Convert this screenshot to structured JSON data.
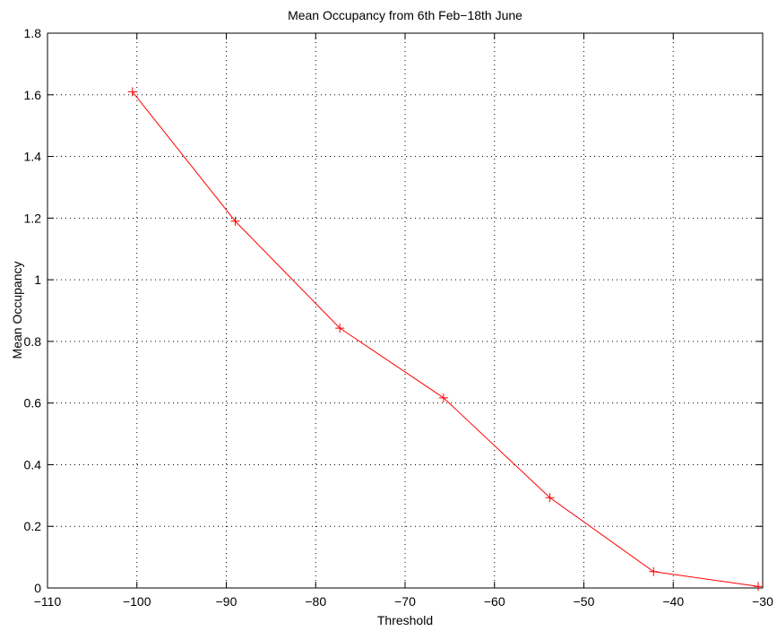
{
  "chart_data": {
    "type": "line",
    "title": "Mean Occupancy from 6th Feb−18th June",
    "xlabel": "Threshold",
    "ylabel": "Mean Occupancy",
    "xlim": [
      -110,
      -30
    ],
    "ylim": [
      0,
      1.8
    ],
    "xticks": [
      -110,
      -100,
      -90,
      -80,
      -70,
      -60,
      -50,
      -40,
      -30
    ],
    "yticks": [
      0,
      0.2,
      0.4,
      0.6,
      0.8,
      1,
      1.2,
      1.4,
      1.6,
      1.8
    ],
    "xtick_labels": [
      "−110",
      "−100",
      "−90",
      "−80",
      "−70",
      "−60",
      "−50",
      "−40",
      "−30"
    ],
    "ytick_labels": [
      "0",
      "0.2",
      "0.4",
      "0.6",
      "0.8",
      "1",
      "1.2",
      "1.4",
      "1.6",
      "1.8"
    ],
    "grid": true,
    "series": [
      {
        "color": "#ff0000",
        "marker": "+",
        "x": [
          -100.5,
          -89,
          -77.3,
          -65.7,
          -53.8,
          -42.2,
          -30.5
        ],
        "y": [
          1.61,
          1.19,
          0.843,
          0.617,
          0.293,
          0.053,
          0.005
        ]
      }
    ]
  }
}
